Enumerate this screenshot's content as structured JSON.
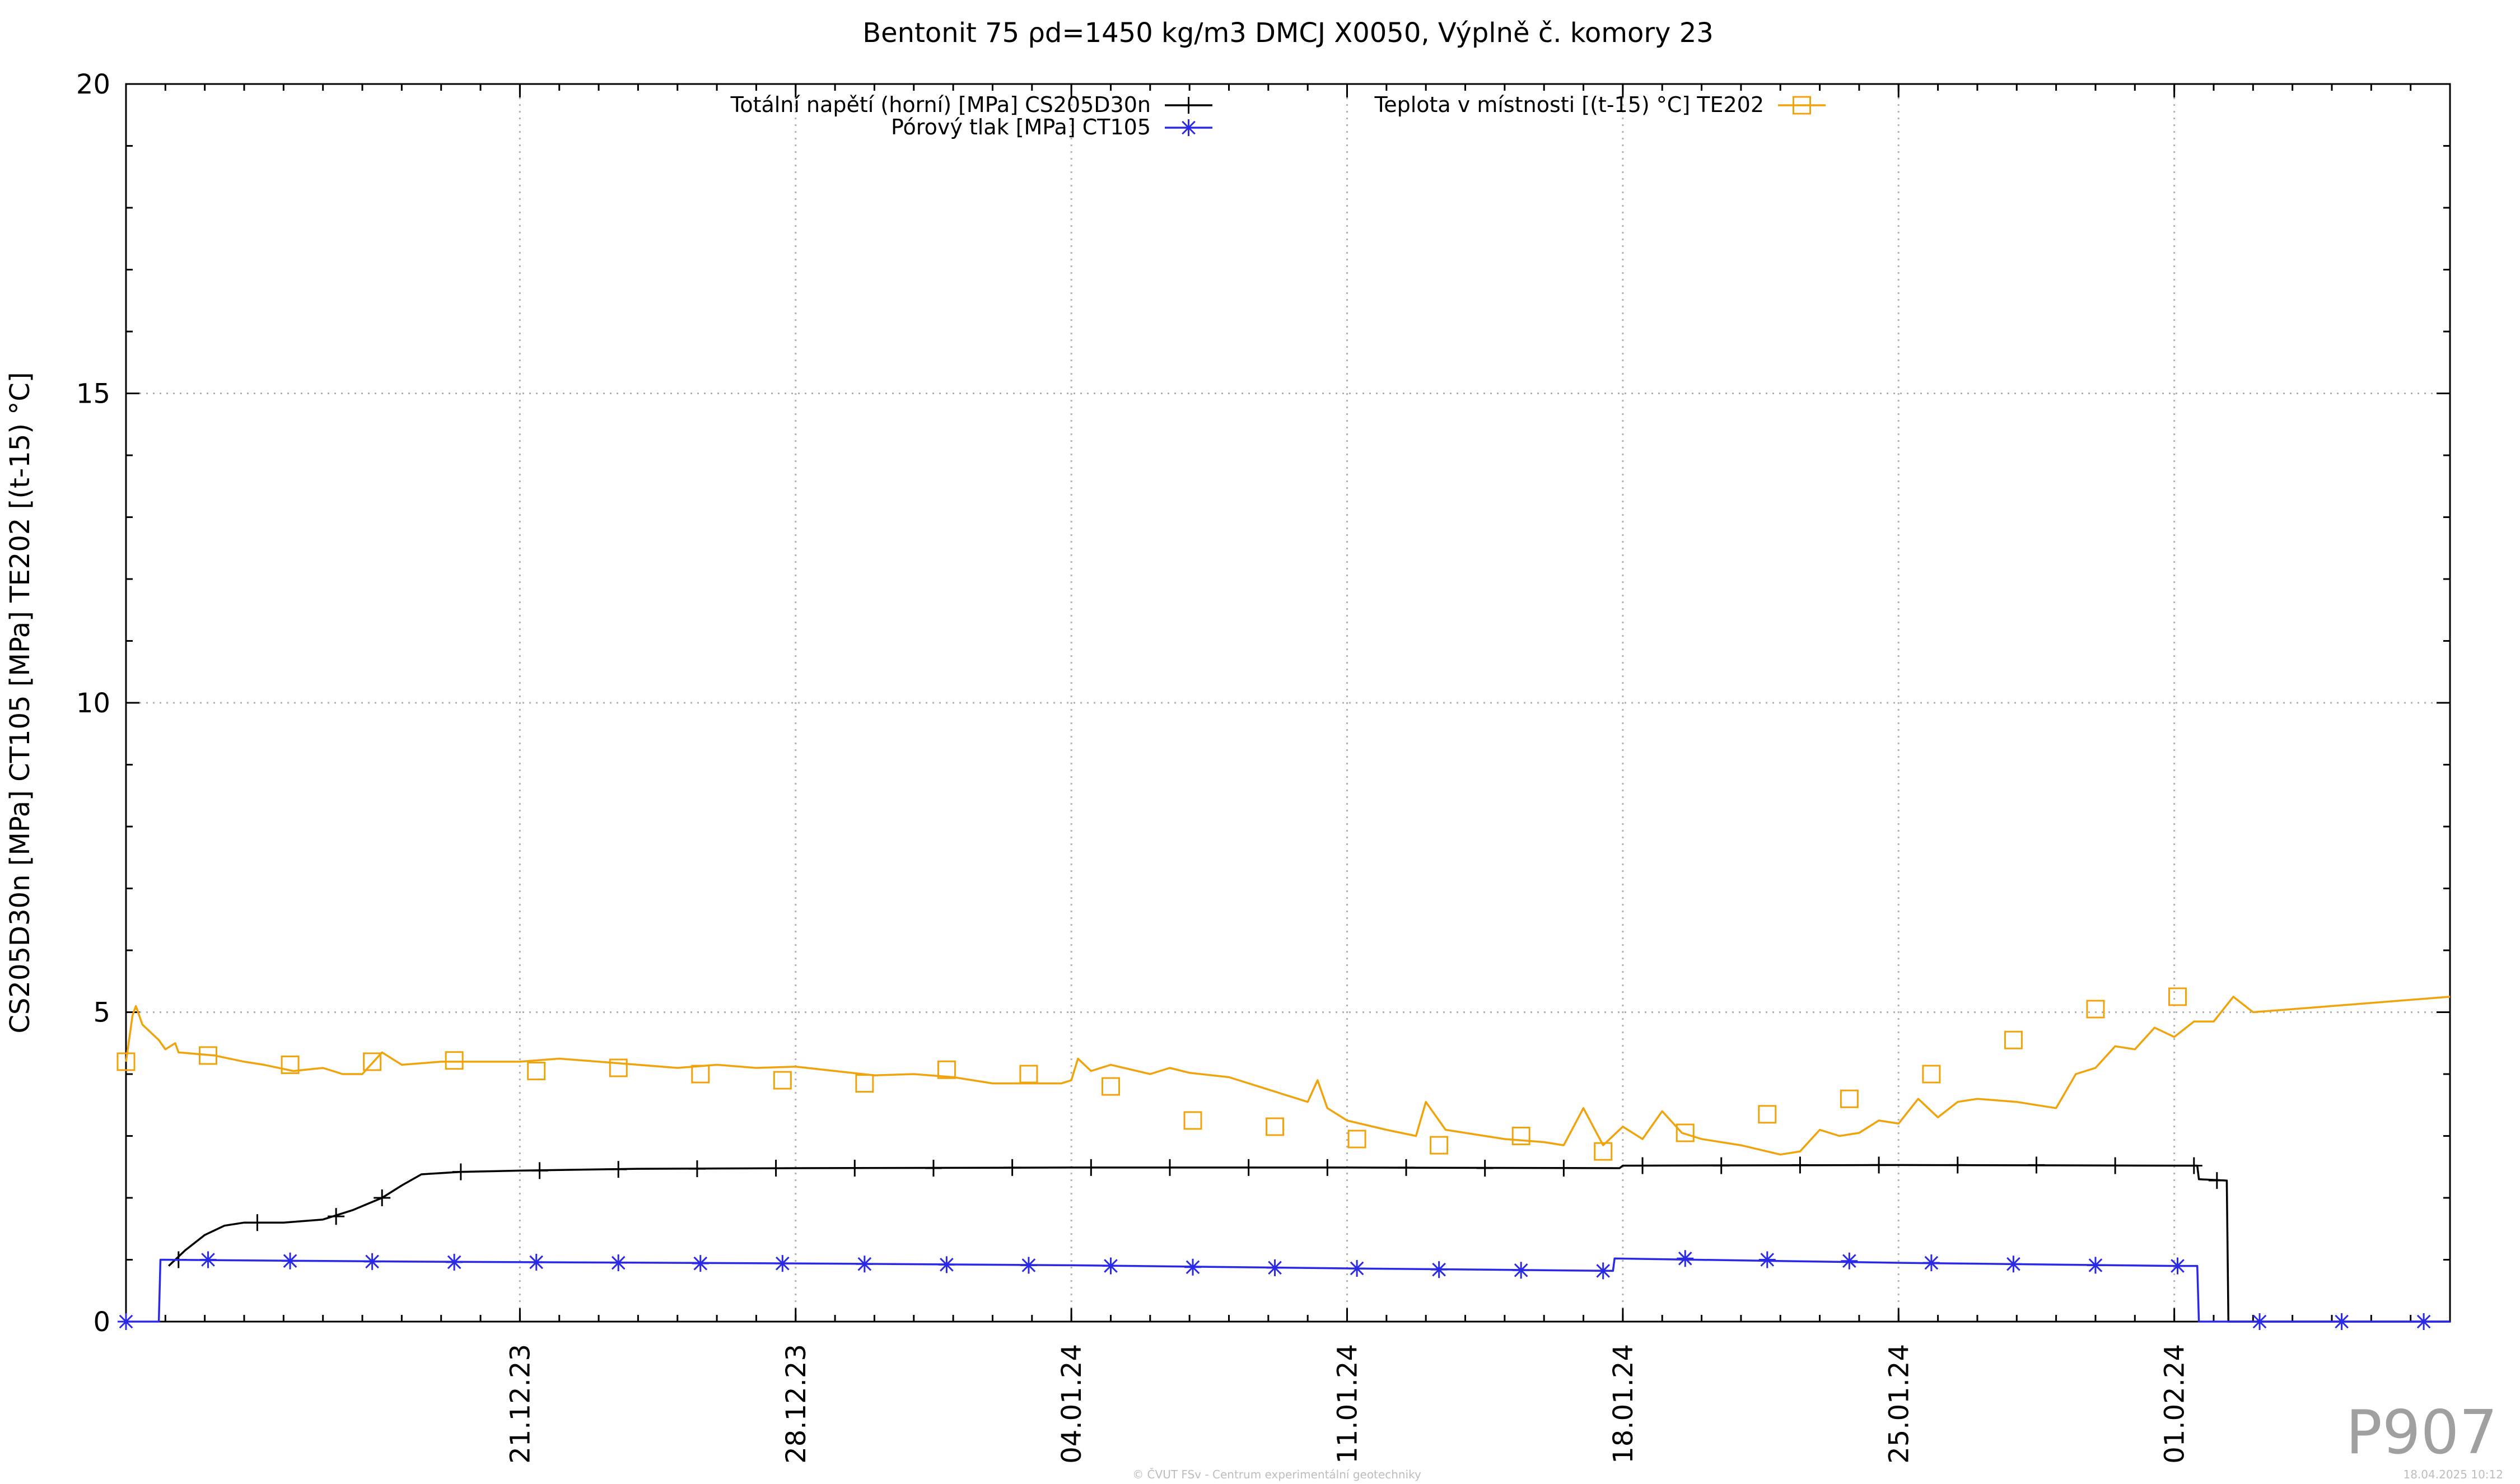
{
  "chart_data": {
    "type": "line",
    "title": "Bentonit 75 ρd=1450 kg/m3 DMCJ X0050, Výplně č. komory 23",
    "xlabel": "",
    "ylabel": "CS205D30n [MPa] CT105 [MPa] TE202 [(t-15) °C]",
    "ylim": [
      0,
      20
    ],
    "xlim": [
      "2023-12-11",
      "2024-02-08"
    ],
    "yticks": [
      "0",
      "5",
      "10",
      "15",
      "20"
    ],
    "xticks": [
      {
        "date": "2023-12-21",
        "label": "21.12.23"
      },
      {
        "date": "2023-12-28",
        "label": "28.12.23"
      },
      {
        "date": "2024-01-04",
        "label": "04.01.24"
      },
      {
        "date": "2024-01-11",
        "label": "11.01.24"
      },
      {
        "date": "2024-01-18",
        "label": "18.01.24"
      },
      {
        "date": "2024-01-25",
        "label": "25.01.24"
      },
      {
        "date": "2024-02-01",
        "label": "01.02.24"
      }
    ],
    "grid": true,
    "legend_position": "top",
    "series": [
      {
        "name": "Totální napětí (horní) [MPa] CS205D30n",
        "color": "#000000",
        "marker": "plus",
        "points": [
          [
            "2023-12-12 02:00",
            0.9
          ],
          [
            "2023-12-12 12:00",
            1.15
          ],
          [
            "2023-12-13 00:00",
            1.4
          ],
          [
            "2023-12-13 12:00",
            1.55
          ],
          [
            "2023-12-14 00:00",
            1.6
          ],
          [
            "2023-12-15 00:00",
            1.6
          ],
          [
            "2023-12-16 00:00",
            1.65
          ],
          [
            "2023-12-16 18:00",
            1.8
          ],
          [
            "2023-12-17 12:00",
            2.0
          ],
          [
            "2023-12-18 00:00",
            2.2
          ],
          [
            "2023-12-18 12:00",
            2.38
          ],
          [
            "2023-12-19 12:00",
            2.42
          ],
          [
            "2023-12-21 00:00",
            2.44
          ],
          [
            "2023-12-24 00:00",
            2.47
          ],
          [
            "2023-12-28 00:00",
            2.48
          ],
          [
            "2024-01-04 00:00",
            2.49
          ],
          [
            "2024-01-11 00:00",
            2.49
          ],
          [
            "2024-01-17 22:00",
            2.48
          ],
          [
            "2024-01-18 00:00",
            2.52
          ],
          [
            "2024-01-25 00:00",
            2.53
          ],
          [
            "2024-02-01 00:00",
            2.52
          ],
          [
            "2024-02-01 14:00",
            2.52
          ],
          [
            "2024-02-01 15:00",
            2.3
          ],
          [
            "2024-02-02 08:00",
            2.28
          ],
          [
            "2024-02-02 09:00",
            0.0
          ],
          [
            "2024-02-08 00:00",
            0.0
          ]
        ],
        "marker_points": [
          [
            "2023-12-12 08:00",
            1.0
          ],
          [
            "2023-12-14 08:00",
            1.6
          ],
          [
            "2023-12-16 08:00",
            1.7
          ],
          [
            "2023-12-17 12:00",
            2.0
          ],
          [
            "2023-12-19 12:00",
            2.42
          ],
          [
            "2023-12-21 12:00",
            2.44
          ],
          [
            "2023-12-23 12:00",
            2.46
          ],
          [
            "2023-12-25 12:00",
            2.47
          ],
          [
            "2023-12-27 12:00",
            2.48
          ],
          [
            "2023-12-29 12:00",
            2.48
          ],
          [
            "2023-12-31 12:00",
            2.48
          ],
          [
            "2024-01-02 12:00",
            2.49
          ],
          [
            "2024-01-04 12:00",
            2.49
          ],
          [
            "2024-01-06 12:00",
            2.49
          ],
          [
            "2024-01-08 12:00",
            2.49
          ],
          [
            "2024-01-10 12:00",
            2.49
          ],
          [
            "2024-01-12 12:00",
            2.49
          ],
          [
            "2024-01-14 12:00",
            2.48
          ],
          [
            "2024-01-16 12:00",
            2.48
          ],
          [
            "2024-01-18 12:00",
            2.52
          ],
          [
            "2024-01-20 12:00",
            2.52
          ],
          [
            "2024-01-22 12:00",
            2.53
          ],
          [
            "2024-01-24 12:00",
            2.53
          ],
          [
            "2024-01-26 12:00",
            2.53
          ],
          [
            "2024-01-28 12:00",
            2.53
          ],
          [
            "2024-01-30 12:00",
            2.52
          ],
          [
            "2024-02-01 12:00",
            2.52
          ],
          [
            "2024-02-02 02:00",
            2.28
          ]
        ]
      },
      {
        "name": "Pórový tlak [MPa] CT105",
        "color": "#2a2ae6",
        "marker": "star",
        "points": [
          [
            "2023-12-11 00:00",
            0.0
          ],
          [
            "2023-12-11 20:00",
            0.0
          ],
          [
            "2023-12-11 21:00",
            1.0
          ],
          [
            "2023-12-18 00:00",
            0.97
          ],
          [
            "2023-12-28 00:00",
            0.94
          ],
          [
            "2024-01-04 00:00",
            0.91
          ],
          [
            "2024-01-11 00:00",
            0.86
          ],
          [
            "2024-01-17 18:00",
            0.82
          ],
          [
            "2024-01-17 19:00",
            1.02
          ],
          [
            "2024-01-25 00:00",
            0.95
          ],
          [
            "2024-02-01 00:00",
            0.9
          ],
          [
            "2024-02-01 14:00",
            0.9
          ],
          [
            "2024-02-01 15:00",
            0.0
          ],
          [
            "2024-02-08 00:00",
            0.0
          ]
        ],
        "marker_points": [
          [
            "2023-12-11 00:00",
            0.0
          ],
          [
            "2023-12-13 02:00",
            1.0
          ],
          [
            "2023-12-15 04:00",
            0.98
          ],
          [
            "2023-12-17 06:00",
            0.97
          ],
          [
            "2023-12-19 08:00",
            0.96
          ],
          [
            "2023-12-21 10:00",
            0.96
          ],
          [
            "2023-12-23 12:00",
            0.95
          ],
          [
            "2023-12-25 14:00",
            0.94
          ],
          [
            "2023-12-27 16:00",
            0.94
          ],
          [
            "2023-12-29 18:00",
            0.93
          ],
          [
            "2023-12-31 20:00",
            0.92
          ],
          [
            "2024-01-02 22:00",
            0.91
          ],
          [
            "2024-01-05 00:00",
            0.9
          ],
          [
            "2024-01-07 02:00",
            0.88
          ],
          [
            "2024-01-09 04:00",
            0.87
          ],
          [
            "2024-01-11 06:00",
            0.86
          ],
          [
            "2024-01-13 08:00",
            0.84
          ],
          [
            "2024-01-15 10:00",
            0.83
          ],
          [
            "2024-01-17 12:00",
            0.82
          ],
          [
            "2024-01-19 14:00",
            1.02
          ],
          [
            "2024-01-21 16:00",
            1.0
          ],
          [
            "2024-01-23 18:00",
            0.98
          ],
          [
            "2024-01-25 20:00",
            0.95
          ],
          [
            "2024-01-27 22:00",
            0.93
          ],
          [
            "2024-01-30 00:00",
            0.91
          ],
          [
            "2024-02-01 02:00",
            0.9
          ],
          [
            "2024-02-03 04:00",
            0.0
          ],
          [
            "2024-02-05 06:00",
            0.0
          ],
          [
            "2024-02-07 08:00",
            0.0
          ]
        ]
      },
      {
        "name": "Teplota v místnosti [(t-15) °C] TE202",
        "color": "#f0a30a",
        "marker": "square",
        "points": [
          [
            "2023-12-11 00:00",
            4.2
          ],
          [
            "2023-12-11 04:00",
            4.95
          ],
          [
            "2023-12-11 06:00",
            5.1
          ],
          [
            "2023-12-11 10:00",
            4.8
          ],
          [
            "2023-12-11 20:00",
            4.55
          ],
          [
            "2023-12-12 00:00",
            4.4
          ],
          [
            "2023-12-12 06:00",
            4.5
          ],
          [
            "2023-12-12 08:00",
            4.35
          ],
          [
            "2023-12-13 06:00",
            4.3
          ],
          [
            "2023-12-14 00:00",
            4.2
          ],
          [
            "2023-12-14 12:00",
            4.15
          ],
          [
            "2023-12-15 06:00",
            4.05
          ],
          [
            "2023-12-16 00:00",
            4.1
          ],
          [
            "2023-12-16 12:00",
            4.0
          ],
          [
            "2023-12-17 00:00",
            4.0
          ],
          [
            "2023-12-17 12:00",
            4.35
          ],
          [
            "2023-12-18 00:00",
            4.15
          ],
          [
            "2023-12-19 00:00",
            4.2
          ],
          [
            "2023-12-20 00:00",
            4.2
          ],
          [
            "2023-12-21 00:00",
            4.2
          ],
          [
            "2023-12-22 00:00",
            4.25
          ],
          [
            "2023-12-23 00:00",
            4.2
          ],
          [
            "2023-12-24 00:00",
            4.15
          ],
          [
            "2023-12-25 00:00",
            4.1
          ],
          [
            "2023-12-26 00:00",
            4.15
          ],
          [
            "2023-12-27 00:00",
            4.1
          ],
          [
            "2023-12-28 00:00",
            4.12
          ],
          [
            "2023-12-29 00:00",
            4.05
          ],
          [
            "2023-12-30 00:00",
            3.98
          ],
          [
            "2023-12-31 00:00",
            4.0
          ],
          [
            "2024-01-01 00:00",
            3.95
          ],
          [
            "2024-01-02 00:00",
            3.85
          ],
          [
            "2024-01-03 00:00",
            3.85
          ],
          [
            "2024-01-03 18:00",
            3.85
          ],
          [
            "2024-01-04 00:00",
            3.9
          ],
          [
            "2024-01-04 04:00",
            4.25
          ],
          [
            "2024-01-04 12:00",
            4.05
          ],
          [
            "2024-01-05 00:00",
            4.15
          ],
          [
            "2024-01-06 00:00",
            4.0
          ],
          [
            "2024-01-06 12:00",
            4.1
          ],
          [
            "2024-01-07 00:00",
            4.02
          ],
          [
            "2024-01-08 00:00",
            3.95
          ],
          [
            "2024-01-09 00:00",
            3.75
          ],
          [
            "2024-01-09 12:00",
            3.65
          ],
          [
            "2024-01-10 00:00",
            3.55
          ],
          [
            "2024-01-10 06:00",
            3.9
          ],
          [
            "2024-01-10 12:00",
            3.45
          ],
          [
            "2024-01-11 00:00",
            3.25
          ],
          [
            "2024-01-12 00:00",
            3.1
          ],
          [
            "2024-01-12 18:00",
            3.0
          ],
          [
            "2024-01-13 00:00",
            3.55
          ],
          [
            "2024-01-13 12:00",
            3.1
          ],
          [
            "2024-01-14 00:00",
            3.05
          ],
          [
            "2024-01-15 00:00",
            2.95
          ],
          [
            "2024-01-16 00:00",
            2.9
          ],
          [
            "2024-01-16 12:00",
            2.85
          ],
          [
            "2024-01-17 00:00",
            3.45
          ],
          [
            "2024-01-17 12:00",
            2.85
          ],
          [
            "2024-01-18 00:00",
            3.15
          ],
          [
            "2024-01-18 12:00",
            2.95
          ],
          [
            "2024-01-19 00:00",
            3.4
          ],
          [
            "2024-01-19 12:00",
            3.05
          ],
          [
            "2024-01-20 00:00",
            2.95
          ],
          [
            "2024-01-21 00:00",
            2.85
          ],
          [
            "2024-01-22 00:00",
            2.7
          ],
          [
            "2024-01-22 12:00",
            2.75
          ],
          [
            "2024-01-23 00:00",
            3.1
          ],
          [
            "2024-01-23 12:00",
            3.0
          ],
          [
            "2024-01-24 00:00",
            3.05
          ],
          [
            "2024-01-24 12:00",
            3.25
          ],
          [
            "2024-01-25 00:00",
            3.2
          ],
          [
            "2024-01-25 12:00",
            3.6
          ],
          [
            "2024-01-26 00:00",
            3.3
          ],
          [
            "2024-01-26 12:00",
            3.55
          ],
          [
            "2024-01-27 00:00",
            3.6
          ],
          [
            "2024-01-28 00:00",
            3.55
          ],
          [
            "2024-01-28 12:00",
            3.5
          ],
          [
            "2024-01-29 00:00",
            3.45
          ],
          [
            "2024-01-29 12:00",
            4.0
          ],
          [
            "2024-01-30 00:00",
            4.1
          ],
          [
            "2024-01-30 12:00",
            4.45
          ],
          [
            "2024-01-31 00:00",
            4.4
          ],
          [
            "2024-01-31 12:00",
            4.75
          ],
          [
            "2024-02-01 00:00",
            4.6
          ],
          [
            "2024-02-01 12:00",
            4.85
          ],
          [
            "2024-02-02 00:00",
            4.85
          ],
          [
            "2024-02-02 12:00",
            5.25
          ],
          [
            "2024-02-03 00:00",
            5.0
          ],
          [
            "2024-02-05 00:00",
            5.1
          ],
          [
            "2024-02-08 00:00",
            5.25
          ]
        ],
        "marker_points": [
          [
            "2023-12-11 00:00",
            4.2
          ],
          [
            "2023-12-13 02:00",
            4.3
          ],
          [
            "2023-12-15 04:00",
            4.15
          ],
          [
            "2023-12-17 06:00",
            4.2
          ],
          [
            "2023-12-19 08:00",
            4.22
          ],
          [
            "2023-12-21 10:00",
            4.05
          ],
          [
            "2023-12-23 12:00",
            4.1
          ],
          [
            "2023-12-25 14:00",
            4.0
          ],
          [
            "2023-12-27 16:00",
            3.9
          ],
          [
            "2023-12-29 18:00",
            3.85
          ],
          [
            "2023-12-31 20:00",
            4.07
          ],
          [
            "2024-01-02 22:00",
            4.0
          ],
          [
            "2024-01-05 00:00",
            3.8
          ],
          [
            "2024-01-07 02:00",
            3.25
          ],
          [
            "2024-01-09 04:00",
            3.15
          ],
          [
            "2024-01-11 06:00",
            2.95
          ],
          [
            "2024-01-13 08:00",
            2.85
          ],
          [
            "2024-01-15 10:00",
            3.0
          ],
          [
            "2024-01-17 12:00",
            2.75
          ],
          [
            "2024-01-19 14:00",
            3.05
          ],
          [
            "2024-01-21 16:00",
            3.35
          ],
          [
            "2024-01-23 18:00",
            3.6
          ],
          [
            "2024-01-25 20:00",
            4.0
          ],
          [
            "2024-01-27 22:00",
            4.55
          ],
          [
            "2024-01-30 00:00",
            5.05
          ],
          [
            "2024-02-01 02:00",
            5.25
          ]
        ]
      }
    ]
  },
  "watermark": "P907",
  "footer_credit": "© ČVUT FSv - Centrum experimentální geotechniky",
  "footer_timestamp": "18.04.2025 10:12"
}
